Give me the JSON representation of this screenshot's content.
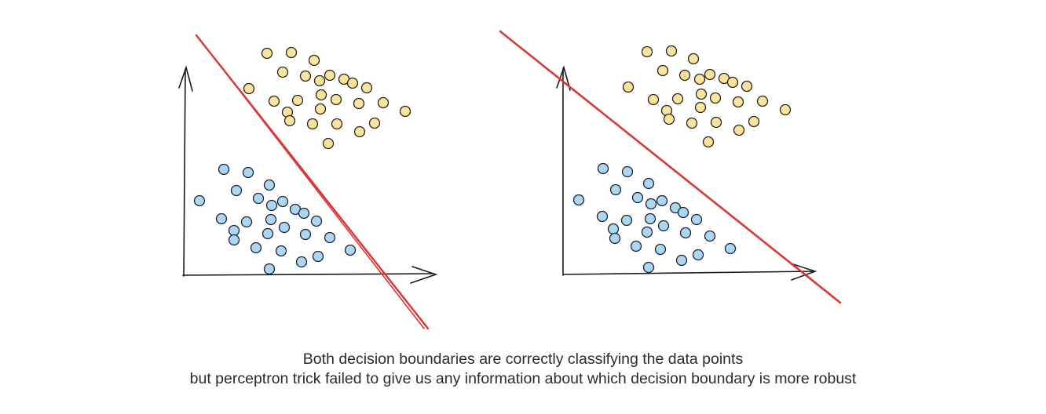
{
  "colors": {
    "background": "#ffffff",
    "axis": "#1a1a1a",
    "boundary": "#d93636",
    "class_yellow_fill": "#fbe39a",
    "class_blue_fill": "#a9d7f5",
    "point_outline": "#222222"
  },
  "caption": {
    "line1": "Both decision boundaries are correctly classifying the data points",
    "line2": "but perceptron trick failed to give us any information about which decision boundary is more robust"
  }
}
